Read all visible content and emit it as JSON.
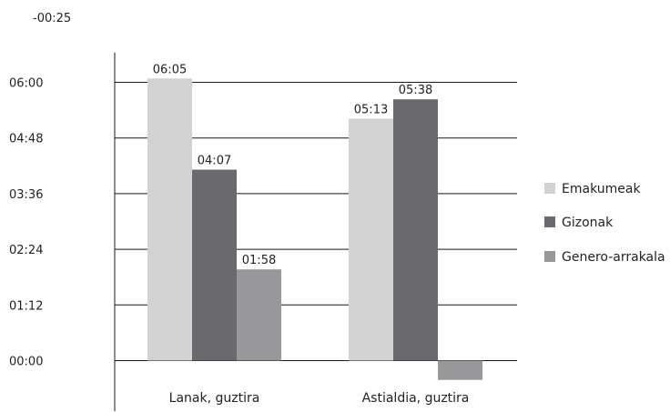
{
  "chart_data": {
    "type": "bar",
    "title": "",
    "xlabel": "",
    "ylabel": "",
    "categories": [
      "Lanak, guztira",
      "Astialdia, guztira"
    ],
    "y_ticks": [
      "-00:25",
      "00:00",
      "01:12",
      "02:24",
      "03:36",
      "04:48",
      "06:00"
    ],
    "y_tick_minutes": [
      -25,
      0,
      72,
      144,
      216,
      288,
      360
    ],
    "ylim_minutes": [
      -25,
      360
    ],
    "grid": true,
    "legend_position": "right",
    "series": [
      {
        "name": "Emakumeak",
        "color": "#d2d2d2",
        "labels": [
          "06:05",
          "05:13"
        ],
        "values_minutes": [
          365,
          313
        ]
      },
      {
        "name": "Gizonak",
        "color": "#6a6a6e",
        "labels": [
          "04:07",
          "05:38"
        ],
        "values_minutes": [
          247,
          338
        ]
      },
      {
        "name": "Genero-arrakala",
        "color": "#98989b",
        "labels": [
          "01:58",
          ""
        ],
        "values_minutes": [
          118,
          -25
        ]
      }
    ]
  }
}
